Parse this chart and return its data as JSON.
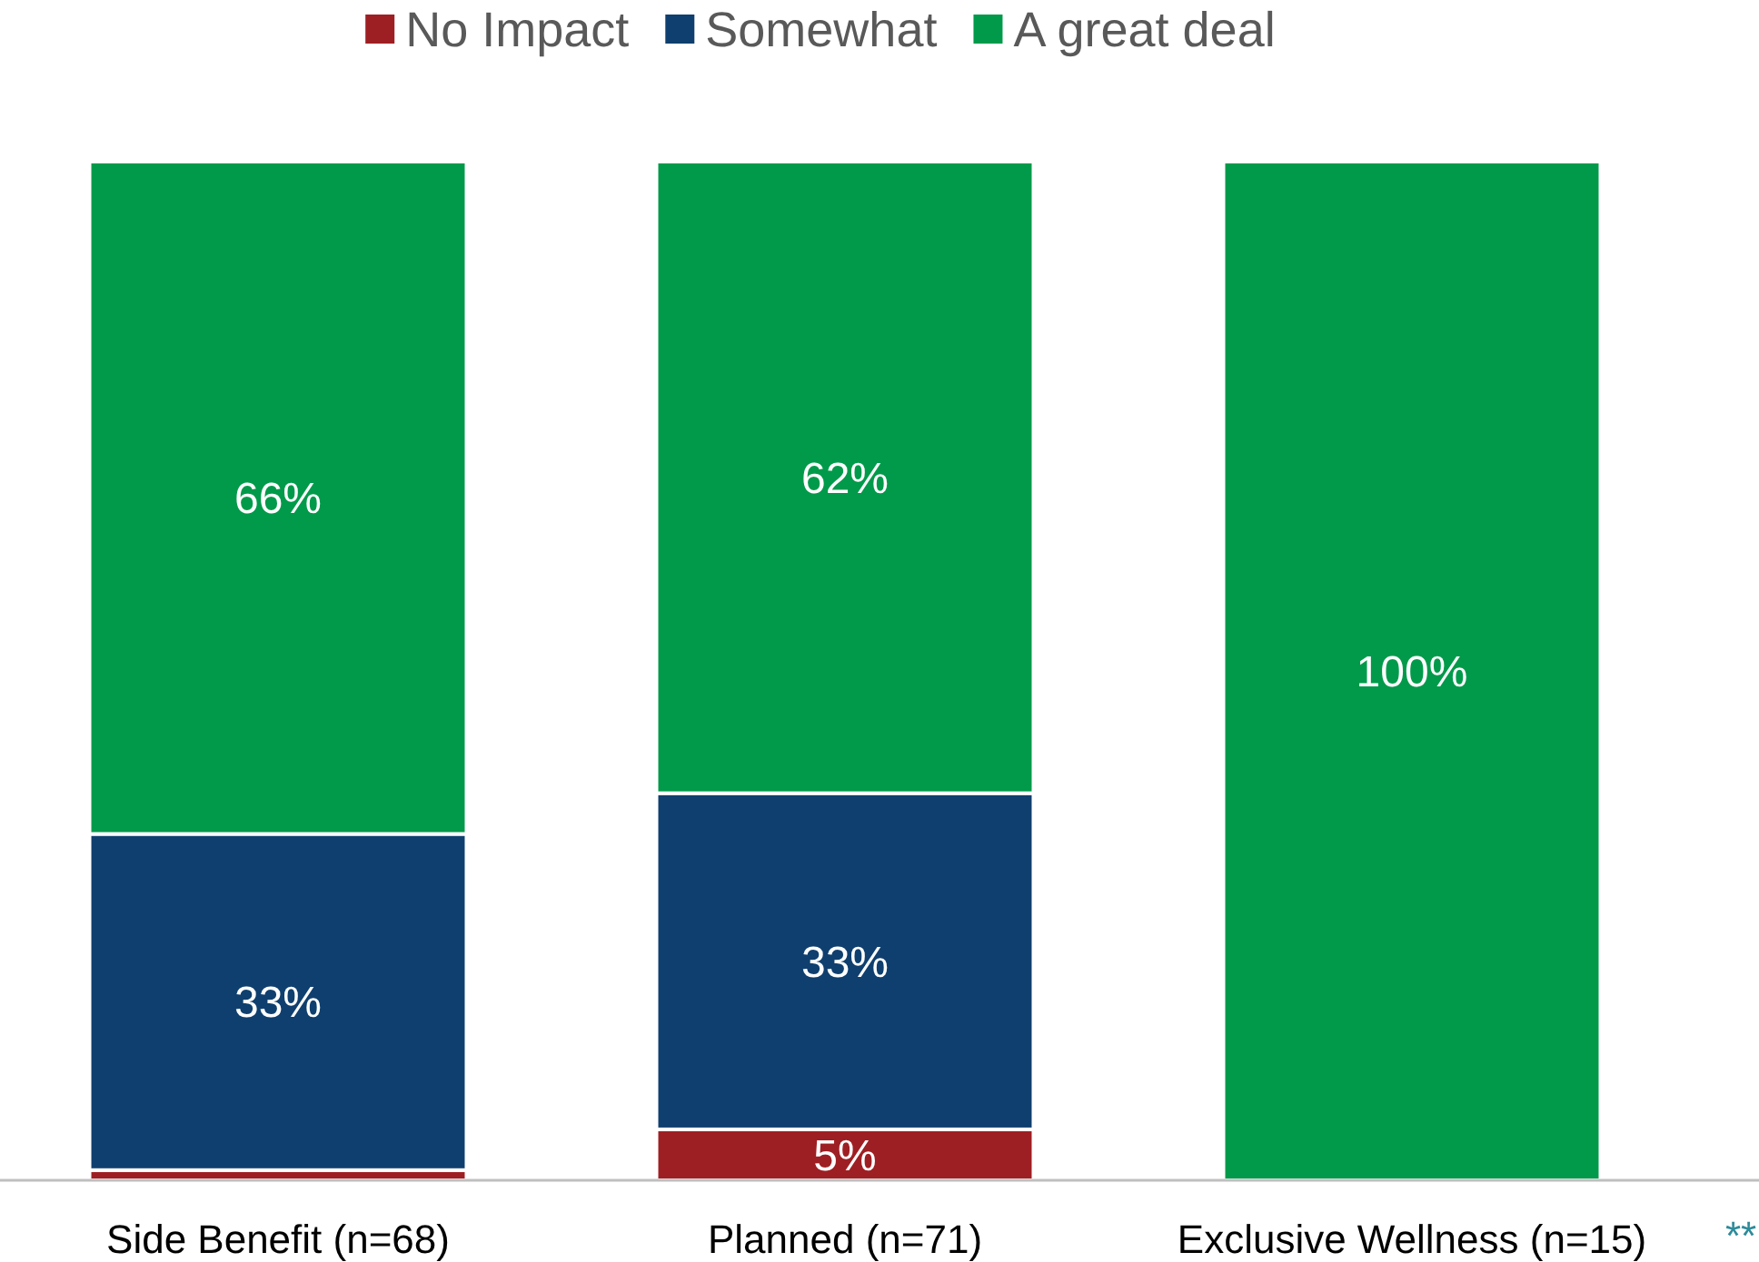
{
  "chart_data": {
    "type": "bar",
    "stacked": true,
    "categories": [
      "Side Benefit (n=68)",
      "Planned (n=71)",
      "Exclusive Wellness (n=15)"
    ],
    "series": [
      {
        "name": "No Impact",
        "color": "#9e1f23",
        "values": [
          1,
          5,
          0
        ],
        "value_labels": [
          null,
          "5%",
          null
        ]
      },
      {
        "name": "Somewhat",
        "color": "#0f3f6e",
        "values": [
          33,
          33,
          0
        ],
        "value_labels": [
          "33%",
          "33%",
          null
        ]
      },
      {
        "name": "A great deal",
        "color": "#009a4a",
        "values": [
          66,
          62,
          100
        ],
        "value_labels": [
          "66%",
          "62%",
          "100%"
        ]
      }
    ],
    "ylim": [
      0,
      100
    ],
    "tick_labels": "x",
    "legend": "top",
    "annotations": [
      "**"
    ]
  }
}
